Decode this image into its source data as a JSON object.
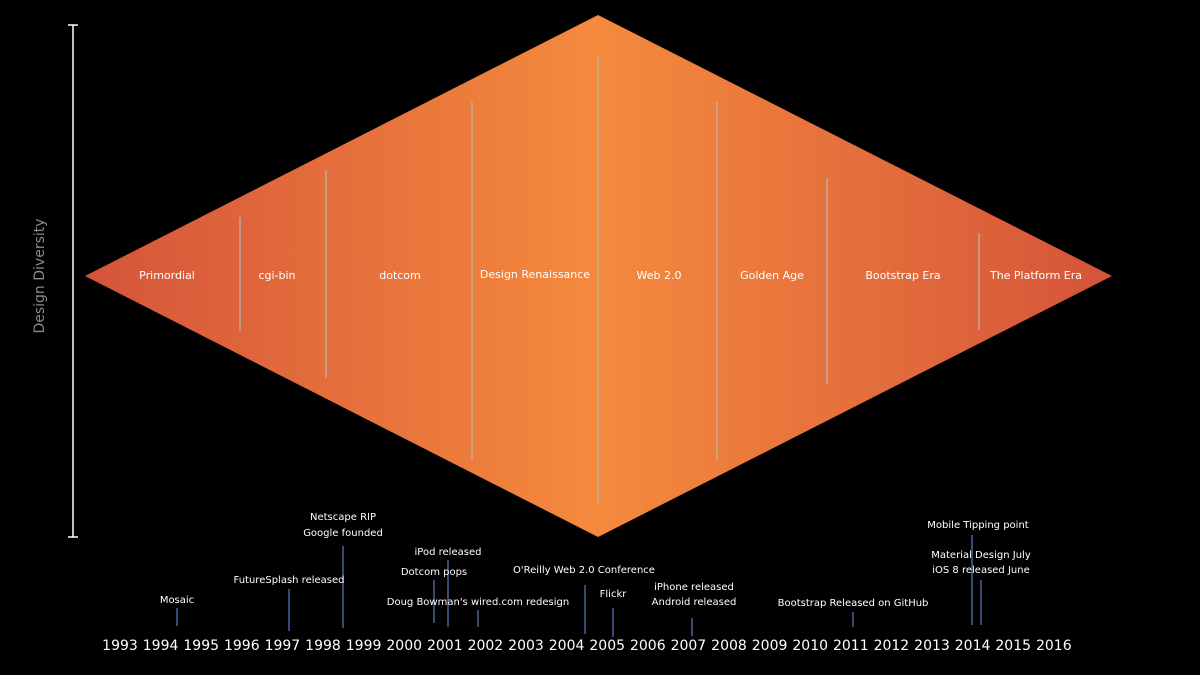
{
  "axis": {
    "label": "Design Diversity"
  },
  "years": [
    "1993",
    "1994",
    "1995",
    "1996",
    "1997",
    "1998",
    "1999",
    "2000",
    "2001",
    "2002",
    "2003",
    "2004",
    "2005",
    "2006",
    "2007",
    "2008",
    "2009",
    "2010",
    "2011",
    "2012",
    "2013",
    "2014",
    "2015",
    "2016"
  ],
  "eras": [
    {
      "name": "Primordial"
    },
    {
      "name": "cgi-bin"
    },
    {
      "name": "dotcom"
    },
    {
      "name": "Design Renaissance"
    },
    {
      "name": "Web 2.0"
    },
    {
      "name": "Golden Age"
    },
    {
      "name": "Bootstrap Era"
    },
    {
      "name": "The Platform Era"
    }
  ],
  "events": [
    {
      "text": [
        "Mosaic"
      ]
    },
    {
      "text": [
        "FutureSplash released"
      ]
    },
    {
      "text": [
        "Netscape RIP",
        "Google founded"
      ]
    },
    {
      "text": [
        "iPod released"
      ]
    },
    {
      "text": [
        "Dotcom pops"
      ]
    },
    {
      "text": [
        "Doug Bowman's wired.com redesign"
      ]
    },
    {
      "text": [
        "O'Reilly Web 2.0 Conference"
      ]
    },
    {
      "text": [
        "Flickr"
      ]
    },
    {
      "text": [
        "iPhone released",
        "Android released"
      ]
    },
    {
      "text": [
        "Bootstrap Released on GitHub"
      ]
    },
    {
      "text": [
        "Mobile Tipping point"
      ]
    },
    {
      "text": [
        "Material Design July",
        "iOS 8 released June"
      ]
    }
  ],
  "colors": {
    "background": "#000000",
    "diamond_center": "#f58a3d",
    "diamond_edge": "#d4543a",
    "divider": "#b8b8b8",
    "event_line": "#4a5f9a",
    "axis": "#ffffff"
  }
}
